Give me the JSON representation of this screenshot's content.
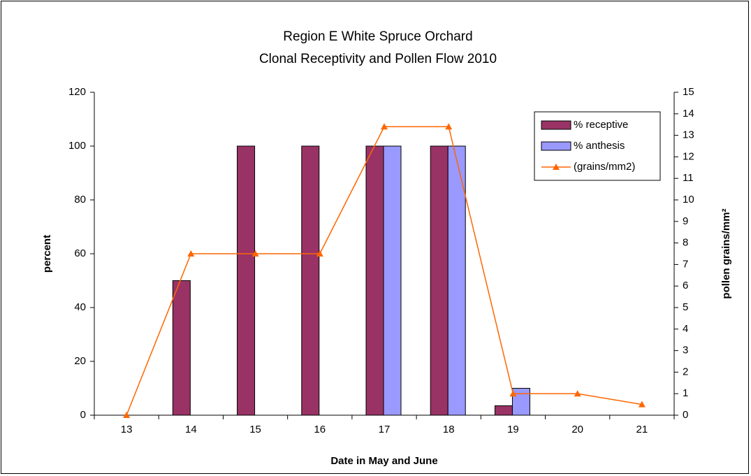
{
  "chart_data": {
    "type": "bar-line",
    "title": [
      "Region E White Spruce Orchard",
      "Clonal Receptivity and Pollen Flow 2010"
    ],
    "x_label": "Date in May and June",
    "y_label": "percent",
    "y2_label": "pollen grains/mm²",
    "categories": [
      "13",
      "14",
      "15",
      "16",
      "17",
      "18",
      "19",
      "20",
      "21"
    ],
    "series": [
      {
        "name": "% receptive",
        "type": "bar",
        "color": "#993366",
        "values": [
          0,
          50,
          100,
          100,
          100,
          100,
          3.5,
          0,
          0
        ]
      },
      {
        "name": "% anthesis",
        "type": "bar",
        "color": "#9999ff",
        "values": [
          0,
          0,
          0,
          0,
          100,
          100,
          10,
          0,
          0
        ]
      },
      {
        "name": "(grains/mm2)",
        "type": "line",
        "axis": "y2",
        "color": "#ff6600",
        "values": [
          0,
          7.5,
          7.5,
          7.5,
          13.4,
          13.4,
          1,
          1,
          0.5
        ]
      }
    ],
    "ylim": [
      0,
      120
    ],
    "yticks": [
      0,
      20,
      40,
      60,
      80,
      100,
      120
    ],
    "y2lim": [
      0,
      15
    ],
    "y2ticks": [
      0,
      1,
      2,
      3,
      4,
      5,
      6,
      7,
      8,
      9,
      10,
      11,
      12,
      13,
      14,
      15
    ],
    "legend": "top-right",
    "grid": false
  }
}
